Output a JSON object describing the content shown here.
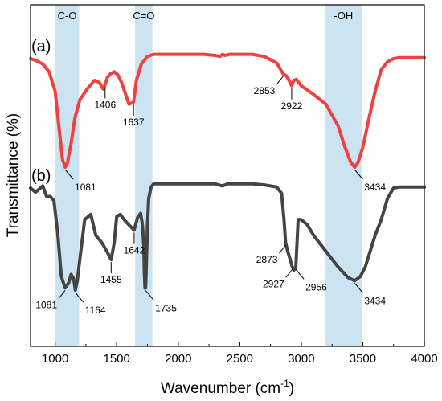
{
  "chart_data": {
    "type": "line",
    "title": "",
    "xlabel": "Wavenumber (cm",
    "xlabel_sup": "-1",
    "xlabel_tail": ")",
    "ylabel": "Transmittance (%)",
    "xlim": [
      800,
      4000
    ],
    "xticks": [
      1000,
      1500,
      2000,
      2500,
      3000,
      3500,
      4000
    ],
    "xtick_labels": [
      "1000",
      "1500",
      "2000",
      "2500",
      "3000",
      "3500",
      "4000"
    ],
    "y_ticks_shown": false,
    "grid": false,
    "legend": "none",
    "bands": [
      {
        "label": "C-O",
        "from": 1000,
        "to": 1195
      },
      {
        "label": "C=O",
        "from": 1650,
        "to": 1790
      },
      {
        "label": "-OH",
        "from": 3195,
        "to": 3490
      }
    ],
    "series": [
      {
        "name": "(a)",
        "color": "#f04141",
        "x": [
          800,
          850,
          900,
          950,
          1000,
          1030,
          1060,
          1081,
          1100,
          1130,
          1160,
          1200,
          1260,
          1320,
          1360,
          1390,
          1406,
          1425,
          1450,
          1480,
          1510,
          1540,
          1570,
          1600,
          1637,
          1660,
          1700,
          1750,
          1800,
          1900,
          2000,
          2100,
          2200,
          2300,
          2340,
          2360,
          2380,
          2420,
          2500,
          2600,
          2700,
          2800,
          2853,
          2880,
          2900,
          2922,
          2940,
          2960,
          3000,
          3100,
          3200,
          3300,
          3350,
          3400,
          3434,
          3460,
          3500,
          3550,
          3600,
          3650,
          3700,
          3750,
          3800,
          3900,
          4000
        ],
        "y": [
          0.0,
          0.02,
          0.05,
          0.12,
          0.3,
          0.62,
          0.93,
          1.0,
          0.96,
          0.78,
          0.55,
          0.38,
          0.28,
          0.2,
          0.22,
          0.28,
          0.24,
          0.17,
          0.14,
          0.12,
          0.15,
          0.22,
          0.32,
          0.42,
          0.4,
          0.2,
          0.05,
          -0.02,
          -0.04,
          -0.04,
          -0.04,
          -0.04,
          -0.04,
          -0.03,
          -0.02,
          -0.04,
          -0.03,
          -0.04,
          -0.04,
          -0.04,
          -0.02,
          0.04,
          0.14,
          0.16,
          0.2,
          0.25,
          0.2,
          0.19,
          0.25,
          0.33,
          0.42,
          0.62,
          0.8,
          0.95,
          1.0,
          0.96,
          0.82,
          0.55,
          0.3,
          0.1,
          0.03,
          0.0,
          -0.01,
          -0.01,
          -0.01
        ]
      },
      {
        "name": "(b)",
        "color": "#444444",
        "x": [
          800,
          840,
          880,
          900,
          930,
          960,
          990,
          1020,
          1050,
          1081,
          1110,
          1130,
          1150,
          1164,
          1180,
          1200,
          1240,
          1290,
          1330,
          1380,
          1420,
          1455,
          1480,
          1500,
          1530,
          1560,
          1600,
          1642,
          1670,
          1695,
          1710,
          1720,
          1725,
          1730,
          1735,
          1740,
          1750,
          1760,
          1780,
          1800,
          1850,
          1900,
          2000,
          2100,
          2200,
          2300,
          2360,
          2400,
          2500,
          2600,
          2700,
          2800,
          2840,
          2860,
          2873,
          2890,
          2910,
          2927,
          2940,
          2956,
          2975,
          2990,
          3000,
          3050,
          3100,
          3200,
          3300,
          3380,
          3434,
          3480,
          3520,
          3560,
          3600,
          3650,
          3700,
          3750,
          3800,
          3900,
          4000
        ],
        "y": [
          0.0,
          0.04,
          0.0,
          -0.02,
          0.08,
          0.08,
          0.12,
          0.42,
          0.84,
          0.95,
          0.9,
          0.82,
          0.86,
          0.97,
          0.88,
          0.68,
          0.3,
          0.25,
          0.45,
          0.52,
          0.6,
          0.68,
          0.52,
          0.27,
          0.25,
          0.3,
          0.35,
          0.4,
          0.28,
          0.24,
          0.35,
          0.55,
          0.8,
          0.95,
          0.95,
          0.8,
          0.35,
          0.1,
          -0.01,
          -0.04,
          -0.04,
          -0.04,
          -0.04,
          -0.04,
          -0.04,
          -0.04,
          -0.02,
          -0.04,
          -0.04,
          -0.04,
          -0.03,
          -0.01,
          0.05,
          0.3,
          0.52,
          0.6,
          0.68,
          0.75,
          0.78,
          0.75,
          0.3,
          0.3,
          0.3,
          0.35,
          0.45,
          0.6,
          0.75,
          0.85,
          0.88,
          0.84,
          0.75,
          0.6,
          0.45,
          0.3,
          0.1,
          0.0,
          -0.01,
          -0.01,
          -0.01
        ]
      }
    ],
    "annotations": [
      {
        "series": 0,
        "x": 1081,
        "label": "1081",
        "side": "below-right"
      },
      {
        "series": 0,
        "x": 1406,
        "label": "1406",
        "side": "below"
      },
      {
        "series": 0,
        "x": 1637,
        "label": "1637",
        "side": "below"
      },
      {
        "series": 0,
        "x": 2853,
        "label": "2853",
        "side": "below-left"
      },
      {
        "series": 0,
        "x": 2922,
        "label": "2922",
        "side": "below"
      },
      {
        "series": 0,
        "x": 3434,
        "label": "3434",
        "side": "below-right"
      },
      {
        "series": 1,
        "x": 1081,
        "label": "1081",
        "side": "below-left"
      },
      {
        "series": 1,
        "x": 1164,
        "label": "1164",
        "side": "below-right"
      },
      {
        "series": 1,
        "x": 1455,
        "label": "1455",
        "side": "below"
      },
      {
        "series": 1,
        "x": 1642,
        "label": "1642",
        "side": "below"
      },
      {
        "series": 1,
        "x": 1735,
        "label": "1735",
        "side": "below-right"
      },
      {
        "series": 1,
        "x": 2873,
        "label": "2873",
        "side": "below-left"
      },
      {
        "series": 1,
        "x": 2927,
        "label": "2927",
        "side": "below-left"
      },
      {
        "series": 1,
        "x": 2956,
        "label": "2956",
        "side": "below-right"
      },
      {
        "series": 1,
        "x": 3434,
        "label": "3434",
        "side": "below-right"
      }
    ]
  }
}
